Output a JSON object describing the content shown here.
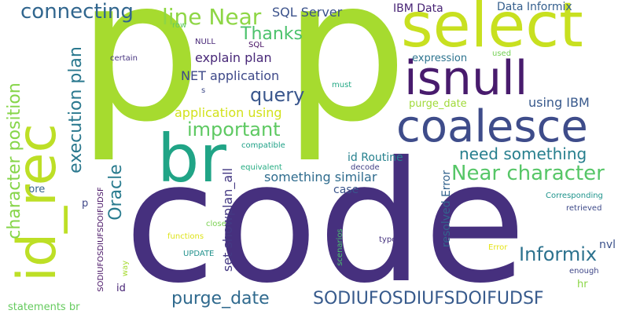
{
  "words": [
    {
      "id": "code",
      "text": "code",
      "color": "#46307e"
    },
    {
      "id": "p",
      "text": "p",
      "color": "#a6db2f"
    },
    {
      "id": "p2",
      "text": "p",
      "color": "#a6db2f"
    },
    {
      "id": "select",
      "text": "select",
      "color": "#c8e020"
    },
    {
      "id": "isnull",
      "text": "isnull",
      "color": "#481b6d"
    },
    {
      "id": "coalesce",
      "text": "coalesce",
      "color": "#3e4c8a"
    },
    {
      "id": "br",
      "text": "br",
      "color": "#20a486"
    },
    {
      "id": "id_rec",
      "text": "id_rec",
      "color": "#bddf26"
    },
    {
      "id": "character-position",
      "text": "character position",
      "color": "#86d549"
    },
    {
      "id": "execution-plan",
      "text": "execution plan",
      "color": "#2a788e"
    },
    {
      "id": "oracle",
      "text": "Oracle",
      "color": "#297b8e"
    },
    {
      "id": "connecting",
      "text": "connecting",
      "color": "#31668e"
    },
    {
      "id": "line-near",
      "text": "line Near",
      "color": "#8ed645"
    },
    {
      "id": "sql-server",
      "text": "SQL Server",
      "color": "#3b528b"
    },
    {
      "id": "ibm-data",
      "text": "IBM Data",
      "color": "#482475"
    },
    {
      "id": "data-informix",
      "text": "Data Informix",
      "color": "#355f8d"
    },
    {
      "id": "thanks",
      "text": "Thanks",
      "color": "#4cc26c"
    },
    {
      "id": "explain-plan",
      "text": "explain plan",
      "color": "#482878"
    },
    {
      "id": "net-application",
      "text": "NET application",
      "color": "#3e4989"
    },
    {
      "id": "query",
      "text": "query",
      "color": "#39568c"
    },
    {
      "id": "application-using",
      "text": "application using",
      "color": "#d2e21b"
    },
    {
      "id": "important",
      "text": "important",
      "color": "#5ec962"
    },
    {
      "id": "near-character",
      "text": "Near character",
      "color": "#56c667"
    },
    {
      "id": "need-something",
      "text": "need something",
      "color": "#277f8e"
    },
    {
      "id": "something-similar",
      "text": "something similar",
      "color": "#2f6c8e"
    },
    {
      "id": "informix",
      "text": "Informix",
      "color": "#2c728e"
    },
    {
      "id": "purge-date-big",
      "text": "purge_date",
      "color": "#306a8e"
    },
    {
      "id": "sodiu-big",
      "text": "SODIUFOSDIUFSDOIFUDSF",
      "color": "#375a8c"
    },
    {
      "id": "set-showplan",
      "text": "set showplan_all",
      "color": "#443983"
    },
    {
      "id": "id-routine",
      "text": "id Routine",
      "color": "#26818e"
    },
    {
      "id": "using-ibm",
      "text": "using IBM",
      "color": "#38598c"
    },
    {
      "id": "purge-date-small",
      "text": "purge_date",
      "color": "#a0da39"
    },
    {
      "id": "expression",
      "text": "expression",
      "color": "#2c738e"
    },
    {
      "id": "resolved-error",
      "text": "resolved Error",
      "color": "#33638d"
    },
    {
      "id": "case",
      "text": "case",
      "color": "#3a548c"
    },
    {
      "id": "pre",
      "text": "pre",
      "color": "#33628d"
    },
    {
      "id": "p-small",
      "text": "p",
      "color": "#3f4788"
    },
    {
      "id": "nvl",
      "text": "nvl",
      "color": "#3b518b"
    },
    {
      "id": "hr",
      "text": "hr",
      "color": "#8bd646"
    },
    {
      "id": "statements-br",
      "text": "statements br",
      "color": "#65cb5e"
    },
    {
      "id": "id-small",
      "text": "id",
      "color": "#482576"
    },
    {
      "id": "row",
      "text": "row",
      "color": "#5ec962"
    },
    {
      "id": "null",
      "text": "NULL",
      "color": "#482878"
    },
    {
      "id": "sql",
      "text": "SQL",
      "color": "#471063"
    },
    {
      "id": "certain",
      "text": "certain",
      "color": "#46337f"
    },
    {
      "id": "s",
      "text": "s",
      "color": "#3e4a89"
    },
    {
      "id": "must",
      "text": "must",
      "color": "#22a884"
    },
    {
      "id": "used",
      "text": "used",
      "color": "#75d054"
    },
    {
      "id": "compatible",
      "text": "compatible",
      "color": "#1fa187"
    },
    {
      "id": "equivalent",
      "text": "equivalent",
      "color": "#25ac82"
    },
    {
      "id": "decode",
      "text": "decode",
      "color": "#424086"
    },
    {
      "id": "corresponding",
      "text": "Corresponding",
      "color": "#1f948c"
    },
    {
      "id": "retrieved",
      "text": "retrieved",
      "color": "#3e4a89"
    },
    {
      "id": "close",
      "text": "close",
      "color": "#7ad151"
    },
    {
      "id": "functions",
      "text": "functions",
      "color": "#dde318"
    },
    {
      "id": "update",
      "text": "UPDATE",
      "color": "#21918c"
    },
    {
      "id": "scenarios",
      "text": "scenarios",
      "color": "#4ac16d"
    },
    {
      "id": "types",
      "text": "types",
      "color": "#46337f"
    },
    {
      "id": "error",
      "text": "Error",
      "color": "#e5e419"
    },
    {
      "id": "enough",
      "text": "enough",
      "color": "#3f4788"
    },
    {
      "id": "way",
      "text": "way",
      "color": "#a8db34"
    },
    {
      "id": "sodiu-small",
      "text": "SODIUFOSDIUFSDOIFUDSF",
      "color": "#471365"
    }
  ]
}
